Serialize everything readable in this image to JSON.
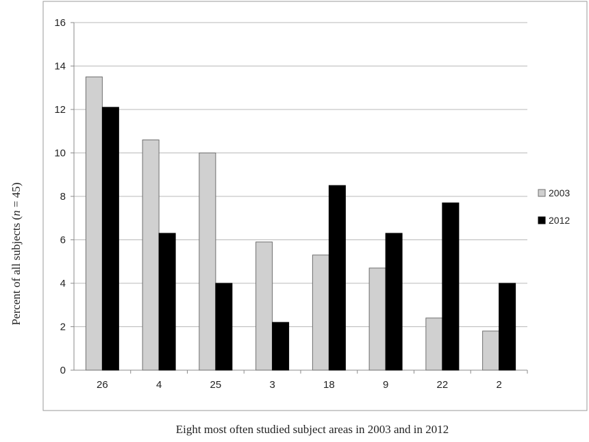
{
  "chart_data": {
    "type": "bar",
    "title": "",
    "xlabel": "Eight most often studied subject areas in 2003 and in 2012",
    "ylabel": "Percent of all subjects (n = 45)",
    "ylabel_parts": [
      "Percent of all subjects (",
      "n",
      " = 45)"
    ],
    "ylim": [
      0,
      16
    ],
    "yticks": [
      0,
      2,
      4,
      6,
      8,
      10,
      12,
      14,
      16
    ],
    "grid": true,
    "legend_position": "right",
    "categories": [
      "26",
      "4",
      "25",
      "3",
      "18",
      "9",
      "22",
      "2"
    ],
    "series": [
      {
        "name": "2003",
        "color": "#d0d0d0",
        "values": [
          13.5,
          10.6,
          10.0,
          5.9,
          5.3,
          4.7,
          2.4,
          1.8
        ]
      },
      {
        "name": "2012",
        "color": "#000000",
        "values": [
          12.1,
          6.3,
          4.0,
          2.2,
          8.5,
          6.3,
          7.7,
          4.0
        ]
      }
    ]
  }
}
